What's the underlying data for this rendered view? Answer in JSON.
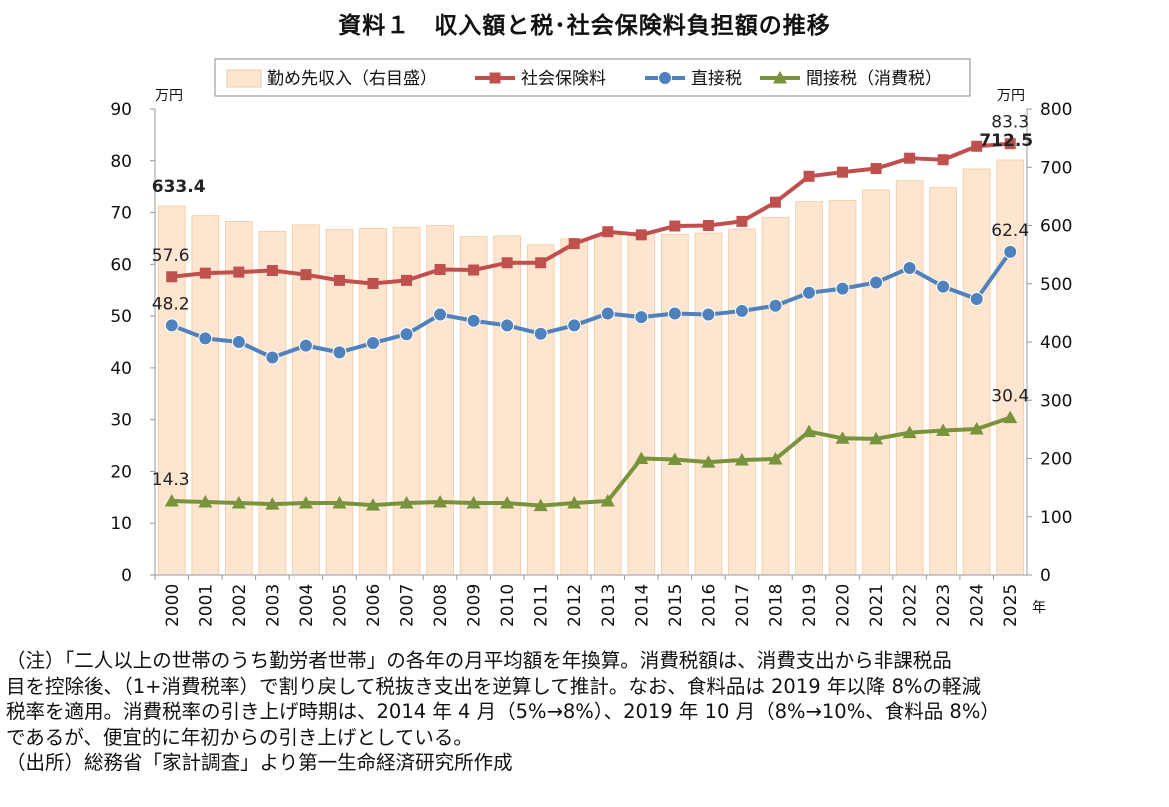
{
  "title": "資料１　収入額と税･社会保険料負担額の推移",
  "chart_data": {
    "type": "bar+line",
    "categories": [
      "2000",
      "2001",
      "2002",
      "2003",
      "2004",
      "2005",
      "2006",
      "2007",
      "2008",
      "2009",
      "2010",
      "2011",
      "2012",
      "2013",
      "2014",
      "2015",
      "2016",
      "2017",
      "2018",
      "2019",
      "2020",
      "2021",
      "2022",
      "2023",
      "2024",
      "2025"
    ],
    "x_unit": "年",
    "left_axis": {
      "unit": "万円",
      "min": 0,
      "max": 90,
      "step": 10
    },
    "right_axis": {
      "unit": "万円",
      "min": 0,
      "max": 800,
      "step": 100
    },
    "legend_position": "top",
    "bar_series": {
      "name": "勤め先収入（右目盛）",
      "axis": "right",
      "color": "#fde5d0",
      "values": [
        633.4,
        617,
        607,
        590,
        601,
        593,
        595,
        597,
        600,
        581,
        582,
        567,
        577,
        585,
        588,
        585,
        587,
        594,
        614,
        641,
        643,
        661,
        677,
        665,
        697,
        712.5
      ]
    },
    "series": [
      {
        "name": "社会保険料",
        "axis": "left",
        "color": "#c0504d",
        "marker": "square",
        "values": [
          57.6,
          58.3,
          58.5,
          58.8,
          58.0,
          56.9,
          56.3,
          56.9,
          59.0,
          58.9,
          60.3,
          60.3,
          64.0,
          66.3,
          65.7,
          67.4,
          67.5,
          68.3,
          72.0,
          77.0,
          77.8,
          78.5,
          80.5,
          80.2,
          82.8,
          83.3
        ],
        "labels": [
          {
            "index": 0,
            "text": "57.6"
          },
          {
            "index": 25,
            "text": "83.3"
          }
        ]
      },
      {
        "name": "直接税",
        "axis": "left",
        "color": "#4f81bd",
        "marker": "circle",
        "values": [
          48.2,
          45.7,
          45.0,
          42.0,
          44.3,
          43.0,
          44.8,
          46.5,
          50.3,
          49.1,
          48.2,
          46.6,
          48.2,
          50.5,
          49.8,
          50.5,
          50.3,
          51.0,
          52.0,
          54.5,
          55.3,
          56.5,
          59.3,
          55.7,
          53.3,
          62.4
        ],
        "labels": [
          {
            "index": 0,
            "text": "48.2"
          },
          {
            "index": 25,
            "text": "62.4"
          }
        ]
      },
      {
        "name": "間接税（消費税）",
        "axis": "left",
        "color": "#77933c",
        "marker": "triangle",
        "values": [
          14.3,
          14.1,
          13.9,
          13.7,
          13.9,
          13.9,
          13.5,
          13.9,
          14.1,
          13.9,
          13.9,
          13.4,
          13.9,
          14.3,
          22.5,
          22.3,
          21.8,
          22.2,
          22.4,
          27.7,
          26.4,
          26.3,
          27.5,
          27.9,
          28.2,
          30.4
        ],
        "labels": [
          {
            "index": 0,
            "text": "14.3"
          },
          {
            "index": 25,
            "text": "30.4"
          }
        ]
      }
    ],
    "bar_labels": [
      {
        "index": 0,
        "text": "633.4"
      },
      {
        "index": 25,
        "text": "712.5"
      }
    ],
    "grid": false
  },
  "notes": [
    "（注）「二人以上の世帯のうち勤労者世帯」の各年の月平均額を年換算。消費税額は、消費支出から非課税品",
    "目を控除後、（1+消費税率）で割り戻して税抜き支出を逆算して推計。なお、食料品は 2019 年以降 8%の軽減",
    "税率を適用。消費税率の引き上げ時期は、2014 年 4 月（5%→8%）、2019 年 10 月（8%→10%、食料品 8%）",
    "であるが、便宜的に年初からの引き上げとしている。",
    "（出所）総務省「家計調査」より第一生命経済研究所作成"
  ]
}
